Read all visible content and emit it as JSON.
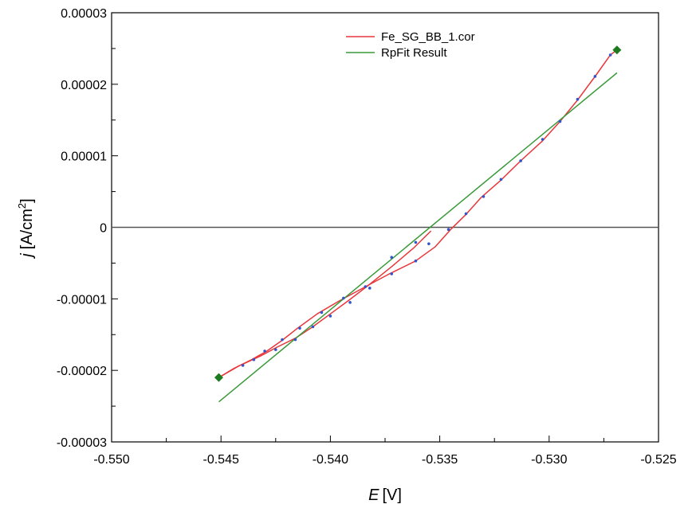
{
  "chart_data": {
    "type": "line",
    "xlabel": {
      "symbol": "E",
      "unit": "[V]"
    },
    "ylabel": {
      "symbol": "j",
      "unit_prefix": "[A/cm",
      "unit_sup": "2",
      "unit_suffix": "]"
    },
    "xlim": [
      -0.55,
      -0.525
    ],
    "ylim": [
      -3e-05,
      3e-05
    ],
    "x_ticks": [
      -0.55,
      -0.545,
      -0.54,
      -0.535,
      -0.53,
      -0.525
    ],
    "x_tick_labels": [
      "-0.550",
      "-0.545",
      "-0.540",
      "-0.535",
      "-0.530",
      "-0.525"
    ],
    "y_ticks": [
      -3e-05,
      -2e-05,
      -1e-05,
      0,
      1e-05,
      2e-05,
      3e-05
    ],
    "y_tick_labels": [
      "-0.00003",
      "-0.00002",
      "-0.00001",
      "0",
      "0.00001",
      "0.00002",
      "0.00003"
    ],
    "grid": false,
    "zero_line": true,
    "legend_position": "top-right",
    "colors": {
      "measured": "#e8363a",
      "fit": "#3a9a3a",
      "markers": "#1e7a1e",
      "points": "#3355cc",
      "zero": "#555555"
    },
    "series": [
      {
        "name": "Fe_SG_BB_1.cor",
        "color": "#e8363a",
        "x": [
          -0.5451,
          -0.5444,
          -0.5436,
          -0.5429,
          -0.5422,
          -0.5415,
          -0.5406,
          -0.5396,
          -0.5384,
          -0.5373,
          -0.5361,
          -0.5352,
          -0.5345,
          -0.5338,
          -0.5331,
          -0.5322,
          -0.5313,
          -0.5303,
          -0.5295,
          -0.5287,
          -0.5279,
          -0.5272,
          -0.5269
        ],
        "y": [
          -2.1e-05,
          -1.97e-05,
          -1.85e-05,
          -1.73e-05,
          -1.58e-05,
          -1.41e-05,
          -1.21e-05,
          -1.03e-05,
          -8.3e-06,
          -6.5e-06,
          -4.7e-06,
          -2.7e-06,
          -3e-07,
          1.8e-06,
          4.2e-06,
          6.6e-06,
          9.3e-06,
          1.21e-05,
          1.48e-05,
          1.78e-05,
          2.11e-05,
          2.41e-05,
          2.48e-05
        ]
      },
      {
        "name": "",
        "color": "#e8363a",
        "x": [
          -0.5451,
          -0.5442,
          -0.5432,
          -0.5424,
          -0.5416,
          -0.5408,
          -0.54,
          -0.5392,
          -0.5383,
          -0.5372,
          -0.5362,
          -0.5354
        ],
        "y": [
          -2.1e-05,
          -1.94e-05,
          -1.8e-05,
          -1.67e-05,
          -1.55e-05,
          -1.39e-05,
          -1.21e-05,
          -1.03e-05,
          -8.2e-06,
          -5.5e-06,
          -2.9e-06,
          -5e-07
        ]
      },
      {
        "name": "RpFit Result",
        "color": "#3a9a3a",
        "x": [
          -0.5451,
          -0.5269
        ],
        "y": [
          -2.44e-05,
          2.16e-05
        ]
      }
    ],
    "endpoints": [
      {
        "x": -0.5451,
        "y": -2.1e-05
      },
      {
        "x": -0.5269,
        "y": 2.48e-05
      }
    ],
    "data_points": [
      {
        "x": -0.544,
        "y": -1.93e-05
      },
      {
        "x": -0.543,
        "y": -1.73e-05
      },
      {
        "x": -0.5422,
        "y": -1.57e-05
      },
      {
        "x": -0.5414,
        "y": -1.41e-05
      },
      {
        "x": -0.5404,
        "y": -1.19e-05
      },
      {
        "x": -0.5394,
        "y": -9.9e-06
      },
      {
        "x": -0.5384,
        "y": -8.3e-06
      },
      {
        "x": -0.5372,
        "y": -6.5e-06
      },
      {
        "x": -0.5361,
        "y": -4.7e-06
      },
      {
        "x": -0.5355,
        "y": -2.3e-06
      },
      {
        "x": -0.5346,
        "y": -3e-07
      },
      {
        "x": -0.5338,
        "y": 1.9e-06
      },
      {
        "x": -0.533,
        "y": 4.3e-06
      },
      {
        "x": -0.5322,
        "y": 6.7e-06
      },
      {
        "x": -0.5313,
        "y": 9.3e-06
      },
      {
        "x": -0.5303,
        "y": 1.23e-05
      },
      {
        "x": -0.5295,
        "y": 1.48e-05
      },
      {
        "x": -0.5287,
        "y": 1.79e-05
      },
      {
        "x": -0.5279,
        "y": 2.11e-05
      },
      {
        "x": -0.5272,
        "y": 2.41e-05
      },
      {
        "x": -0.5435,
        "y": -1.85e-05
      },
      {
        "x": -0.5425,
        "y": -1.71e-05
      },
      {
        "x": -0.5416,
        "y": -1.57e-05
      },
      {
        "x": -0.5408,
        "y": -1.39e-05
      },
      {
        "x": -0.54,
        "y": -1.24e-05
      },
      {
        "x": -0.5391,
        "y": -1.05e-05
      },
      {
        "x": -0.5382,
        "y": -8.5e-06
      },
      {
        "x": -0.5372,
        "y": -4.2e-06
      },
      {
        "x": -0.5361,
        "y": -2.1e-06
      }
    ]
  }
}
